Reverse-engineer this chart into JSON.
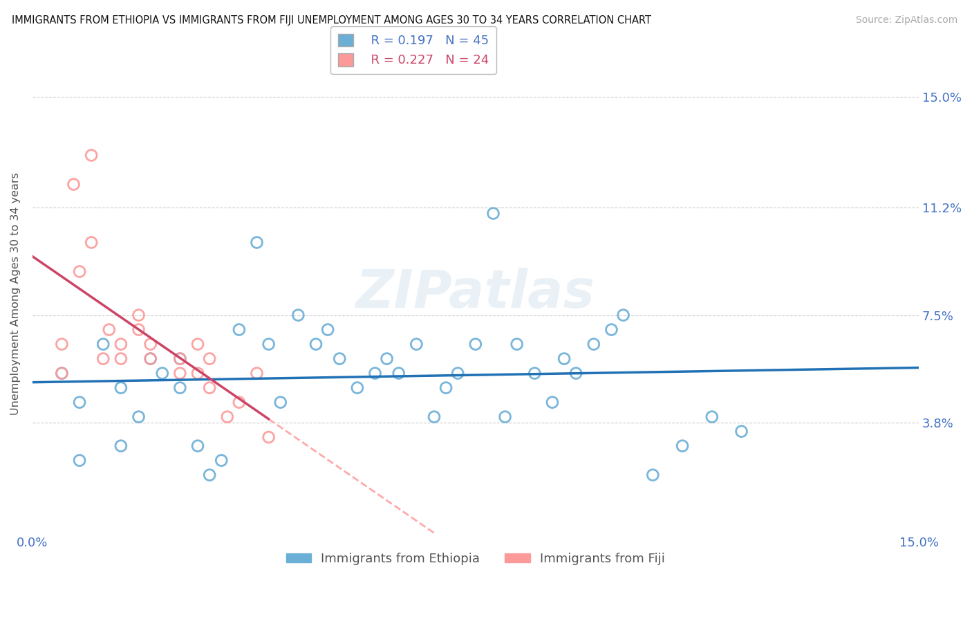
{
  "title": "IMMIGRANTS FROM ETHIOPIA VS IMMIGRANTS FROM FIJI UNEMPLOYMENT AMONG AGES 30 TO 34 YEARS CORRELATION CHART",
  "source": "Source: ZipAtlas.com",
  "ylabel": "Unemployment Among Ages 30 to 34 years",
  "ytick_labels": [
    "3.8%",
    "7.5%",
    "11.2%",
    "15.0%"
  ],
  "ytick_values": [
    0.038,
    0.075,
    0.112,
    0.15
  ],
  "xlim": [
    0.0,
    0.15
  ],
  "ylim": [
    0.0,
    0.165
  ],
  "legend_r_eth": "0.197",
  "legend_n_eth": "45",
  "legend_r_fiji": "0.227",
  "legend_n_fiji": "24",
  "color_eth_edge": "#6baed6",
  "color_fiji_edge": "#fb9a99",
  "color_line_eth": "#2171b5",
  "color_line_fiji_solid": "#cc4466",
  "color_line_fiji_dashed": "#ffaaaa",
  "watermark": "ZIPatlas",
  "eth_x": [
    0.005,
    0.008,
    0.012,
    0.015,
    0.018,
    0.02,
    0.022,
    0.025,
    0.028,
    0.03,
    0.032,
    0.035,
    0.038,
    0.04,
    0.042,
    0.045,
    0.048,
    0.05,
    0.052,
    0.055,
    0.058,
    0.06,
    0.062,
    0.065,
    0.068,
    0.07,
    0.072,
    0.075,
    0.078,
    0.08,
    0.082,
    0.085,
    0.088,
    0.09,
    0.092,
    0.095,
    0.098,
    0.1,
    0.105,
    0.11,
    0.115,
    0.12,
    0.008,
    0.015,
    0.025
  ],
  "eth_y": [
    0.055,
    0.045,
    0.065,
    0.05,
    0.04,
    0.06,
    0.055,
    0.05,
    0.03,
    0.02,
    0.025,
    0.07,
    0.1,
    0.065,
    0.045,
    0.075,
    0.065,
    0.07,
    0.06,
    0.05,
    0.055,
    0.06,
    0.055,
    0.065,
    0.04,
    0.05,
    0.055,
    0.065,
    0.11,
    0.04,
    0.065,
    0.055,
    0.045,
    0.06,
    0.055,
    0.065,
    0.07,
    0.075,
    0.02,
    0.03,
    0.04,
    0.035,
    0.025,
    0.03,
    0.06
  ],
  "fiji_x": [
    0.005,
    0.005,
    0.007,
    0.008,
    0.01,
    0.01,
    0.012,
    0.013,
    0.015,
    0.015,
    0.018,
    0.018,
    0.02,
    0.02,
    0.025,
    0.025,
    0.028,
    0.028,
    0.03,
    0.03,
    0.033,
    0.035,
    0.038,
    0.04
  ],
  "fiji_y": [
    0.055,
    0.065,
    0.12,
    0.09,
    0.13,
    0.1,
    0.06,
    0.07,
    0.06,
    0.065,
    0.07,
    0.075,
    0.06,
    0.065,
    0.055,
    0.06,
    0.065,
    0.055,
    0.05,
    0.06,
    0.04,
    0.045,
    0.055,
    0.033
  ]
}
